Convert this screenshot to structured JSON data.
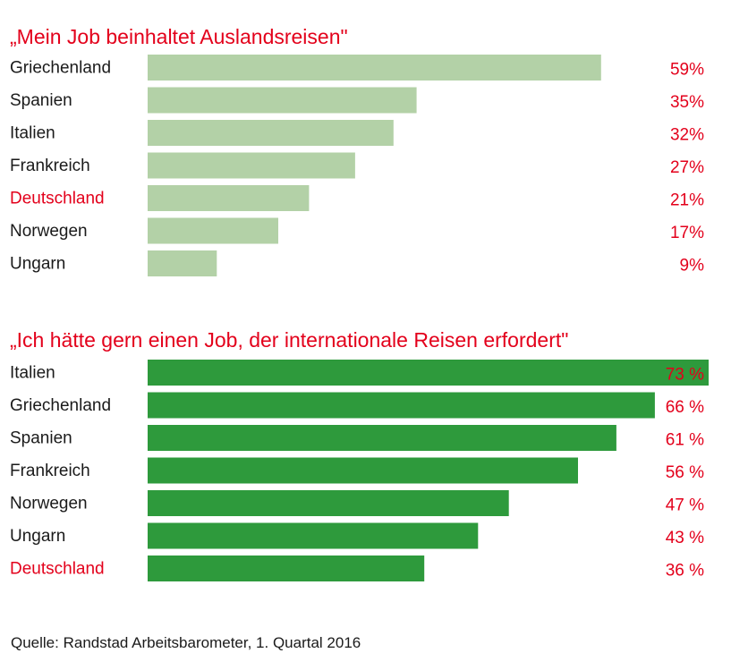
{
  "chart_data": [
    {
      "type": "bar",
      "orientation": "horizontal",
      "title": "„Mein Job beinhaltet Auslandsreisen\"",
      "categories": [
        "Griechenland",
        "Spanien",
        "Italien",
        "Frankreich",
        "Deutschland",
        "Norwegen",
        "Ungarn"
      ],
      "values": [
        59,
        35,
        32,
        27,
        21,
        17,
        9
      ],
      "value_labels": [
        "59%",
        "35%",
        "32%",
        "27%",
        "21%",
        "17%",
        "9%"
      ],
      "highlight_category": "Deutschland",
      "bar_color": "#b3d1a7",
      "xlim": [
        0,
        73
      ],
      "grid": false
    },
    {
      "type": "bar",
      "orientation": "horizontal",
      "title": "„Ich hätte gern einen Job, der internationale Reisen erfordert\"",
      "categories": [
        "Italien",
        "Griechenland",
        "Spanien",
        "Frankreich",
        "Norwegen",
        "Ungarn",
        "Deutschland"
      ],
      "values": [
        73,
        66,
        61,
        56,
        47,
        43,
        36
      ],
      "value_labels": [
        "73 %",
        "66 %",
        "61 %",
        "56 %",
        "47 %",
        "43 %",
        "36 %"
      ],
      "highlight_category": "Deutschland",
      "bar_color": "#2e9a3c",
      "xlim": [
        0,
        73
      ],
      "grid": false
    }
  ],
  "colors": {
    "accent": "#e3001b",
    "text": "#1a1a1a"
  },
  "source": "Quelle: Randstad Arbeitsbarometer, 1. Quartal 2016"
}
